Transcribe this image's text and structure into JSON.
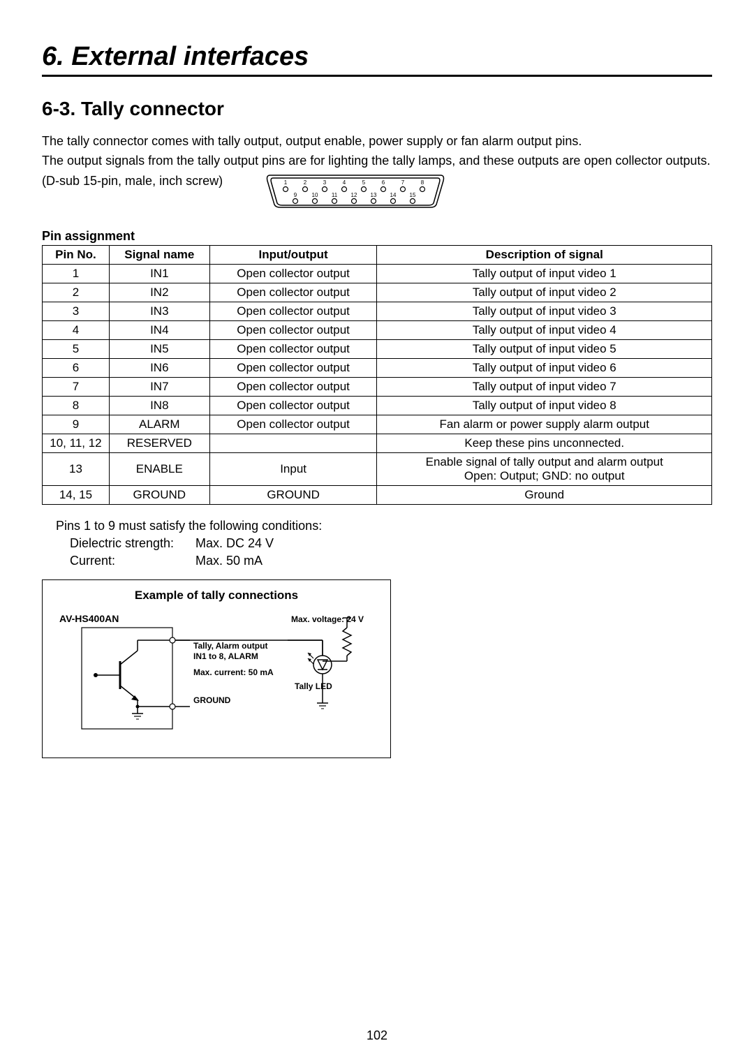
{
  "chapter_title": "6. External interfaces",
  "section_title": "6-3. Tally connector",
  "intro_lines": [
    "The tally connector comes with tally output, output enable, power supply or fan alarm output pins.",
    "The output signals from the tally output pins are for lighting the tally lamps, and these outputs are open collector outputs.",
    "(D-sub 15-pin, male, inch screw)"
  ],
  "dsub_top": [
    "1",
    "2",
    "3",
    "4",
    "5",
    "6",
    "7",
    "8"
  ],
  "dsub_bottom": [
    "9",
    "10",
    "11",
    "12",
    "13",
    "14",
    "15"
  ],
  "table_title": "Pin assignment",
  "table": {
    "headers": [
      "Pin No.",
      "Signal name",
      "Input/output",
      "Description of signal"
    ],
    "rows": [
      [
        "1",
        "IN1",
        "Open collector output",
        "Tally output of input video 1"
      ],
      [
        "2",
        "IN2",
        "Open collector output",
        "Tally output of input video 2"
      ],
      [
        "3",
        "IN3",
        "Open collector output",
        "Tally output of input video 3"
      ],
      [
        "4",
        "IN4",
        "Open collector output",
        "Tally output of input video 4"
      ],
      [
        "5",
        "IN5",
        "Open collector output",
        "Tally output of input video 5"
      ],
      [
        "6",
        "IN6",
        "Open collector output",
        "Tally output of input video 6"
      ],
      [
        "7",
        "IN7",
        "Open collector output",
        "Tally output of input video 7"
      ],
      [
        "8",
        "IN8",
        "Open collector output",
        "Tally output of input video 8"
      ],
      [
        "9",
        "ALARM",
        "Open collector output",
        "Fan alarm or power supply alarm output"
      ],
      [
        "10, 11, 12",
        "RESERVED",
        "",
        "Keep these pins unconnected."
      ],
      [
        "13",
        "ENABLE",
        "Input",
        "Enable signal of tally output and alarm output\nOpen: Output; GND: no output"
      ],
      [
        "14, 15",
        "GROUND",
        "GROUND",
        "Ground"
      ]
    ]
  },
  "conditions": {
    "intro": "Pins 1 to 9 must satisfy the following conditions:",
    "diel_label": "Dielectric strength:",
    "diel_value": "Max. DC 24 V",
    "curr_label": "Current:",
    "curr_value": "Max. 50 mA"
  },
  "example": {
    "title": "Example of tally connections",
    "device": "AV-HS400AN",
    "max_voltage": "Max. voltage: 24 V",
    "tally_alarm_label": "Tally, Alarm output\nIN1 to 8, ALARM",
    "max_current": "Max. current: 50 mA",
    "tally_led": "Tally LED",
    "ground": "GROUND"
  },
  "page_number": "102",
  "colors": {
    "text": "#000000",
    "background": "#ffffff",
    "border": "#000000"
  }
}
